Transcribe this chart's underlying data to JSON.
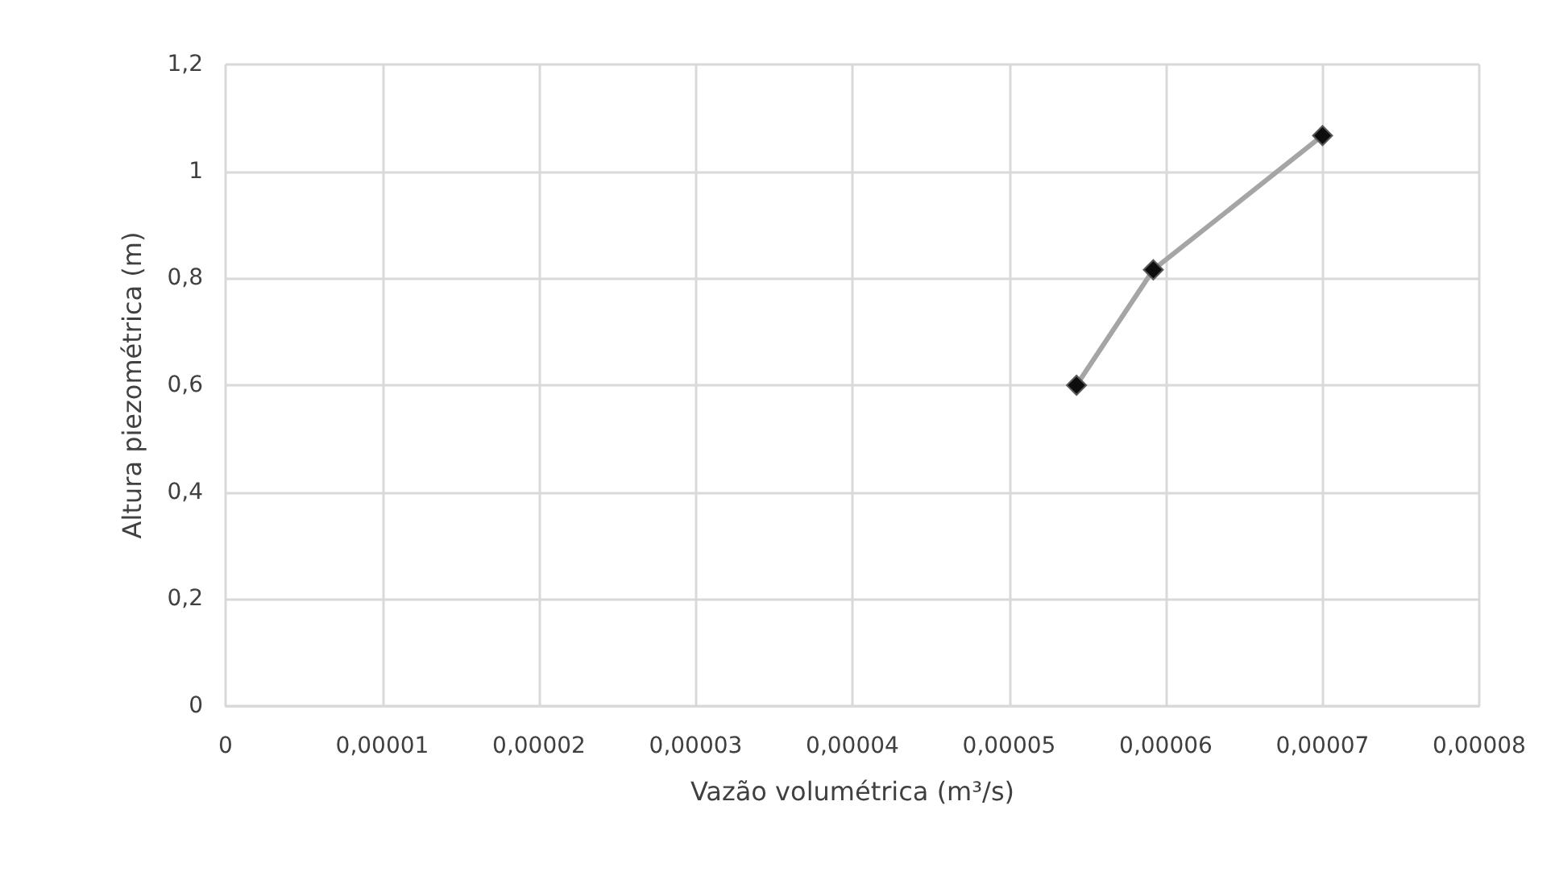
{
  "chart_data": {
    "type": "line",
    "xlabel": "Vazão volumétrica (m³/s)",
    "ylabel": "Altura piezométrica (m)",
    "x": [
      5.43e-05,
      5.92e-05,
      7e-05
    ],
    "series": [
      {
        "color": "#a5a5a5",
        "values": [
          0.6,
          0.816,
          1.067
        ]
      }
    ],
    "marker": "diamond",
    "line_style": "solid",
    "grid": true,
    "xlim": [
      0,
      8e-05
    ],
    "xticks": [
      0,
      {
        "value": 1e-05,
        "label": "0,00001"
      },
      {
        "value": 2e-05,
        "label": "0,00002"
      },
      {
        "value": 3e-05,
        "label": "0,00003"
      },
      {
        "value": 4e-05,
        "label": "0,00004"
      },
      {
        "value": 5e-05,
        "label": "0,00005"
      },
      {
        "value": 6e-05,
        "label": "0,00006"
      },
      {
        "value": 7e-05,
        "label": "0,00007"
      },
      {
        "value": 8e-05,
        "label": "0,00008"
      }
    ],
    "ylim": [
      0,
      1.2
    ],
    "yticks": [
      0,
      {
        "value": 0.2,
        "label": "0,2"
      },
      {
        "value": 0.4,
        "label": "0,4"
      },
      {
        "value": 0.6,
        "label": "0,6"
      },
      {
        "value": 0.8,
        "label": "0,8"
      },
      1,
      {
        "value": 1.2,
        "label": "1,2"
      }
    ]
  }
}
